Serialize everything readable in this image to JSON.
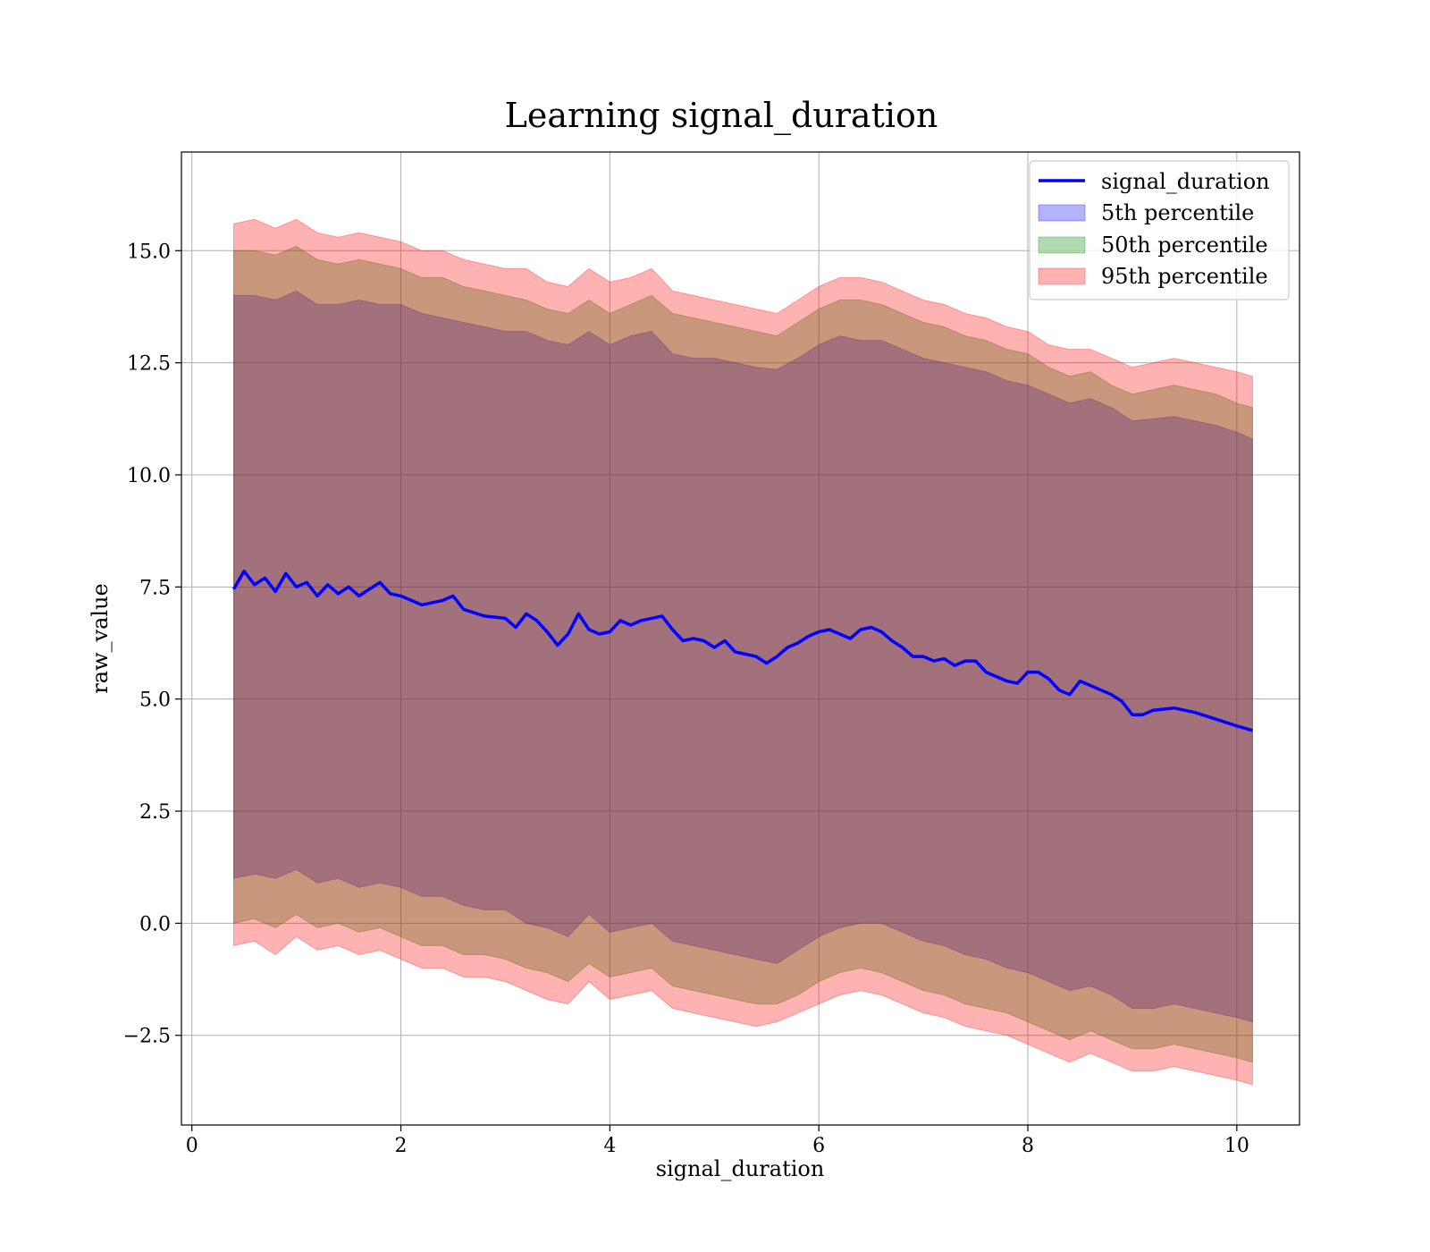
{
  "chart_data": {
    "type": "area",
    "title": "Learning signal_duration",
    "xlabel": "signal_duration",
    "ylabel": "raw_value",
    "xlim": [
      -0.1,
      10.6
    ],
    "ylim": [
      -4.5,
      17.2
    ],
    "xticks": [
      0,
      2,
      4,
      6,
      8,
      10
    ],
    "xtick_labels": [
      "0",
      "2",
      "4",
      "6",
      "8",
      "10"
    ],
    "yticks": [
      -2.5,
      0.0,
      2.5,
      5.0,
      7.5,
      10.0,
      12.5,
      15.0
    ],
    "ytick_labels": [
      "−2.5",
      "0.0",
      "2.5",
      "5.0",
      "7.5",
      "10.0",
      "12.5",
      "15.0"
    ],
    "grid": true,
    "legend_position": "top-right",
    "colors": {
      "line": "#0000ff",
      "p5": "#0000ff",
      "p50": "#008000",
      "p95": "#ff0000"
    },
    "line": {
      "name": "signal_duration",
      "x": [
        0.4,
        0.5,
        0.6,
        0.7,
        0.8,
        0.9,
        1.0,
        1.1,
        1.2,
        1.3,
        1.4,
        1.5,
        1.6,
        1.7,
        1.8,
        1.9,
        2.0,
        2.2,
        2.4,
        2.5,
        2.6,
        2.8,
        3.0,
        3.1,
        3.2,
        3.3,
        3.4,
        3.5,
        3.6,
        3.7,
        3.8,
        3.9,
        4.0,
        4.1,
        4.2,
        4.3,
        4.4,
        4.5,
        4.6,
        4.7,
        4.8,
        4.9,
        5.0,
        5.1,
        5.2,
        5.3,
        5.4,
        5.5,
        5.6,
        5.7,
        5.8,
        5.9,
        6.0,
        6.1,
        6.2,
        6.3,
        6.4,
        6.5,
        6.6,
        6.7,
        6.8,
        6.9,
        7.0,
        7.1,
        7.2,
        7.3,
        7.4,
        7.5,
        7.6,
        7.7,
        7.8,
        7.9,
        8.0,
        8.1,
        8.2,
        8.3,
        8.4,
        8.5,
        8.6,
        8.7,
        8.8,
        8.9,
        9.0,
        9.1,
        9.2,
        9.4,
        9.6,
        9.8,
        10.0,
        10.15
      ],
      "y": [
        7.45,
        7.85,
        7.55,
        7.7,
        7.4,
        7.8,
        7.5,
        7.6,
        7.3,
        7.55,
        7.35,
        7.5,
        7.3,
        7.45,
        7.6,
        7.35,
        7.3,
        7.1,
        7.2,
        7.3,
        7.0,
        6.85,
        6.8,
        6.6,
        6.9,
        6.75,
        6.5,
        6.2,
        6.45,
        6.9,
        6.55,
        6.45,
        6.5,
        6.75,
        6.65,
        6.75,
        6.8,
        6.85,
        6.55,
        6.3,
        6.35,
        6.3,
        6.15,
        6.3,
        6.05,
        6.0,
        5.95,
        5.8,
        5.95,
        6.15,
        6.25,
        6.4,
        6.5,
        6.55,
        6.45,
        6.35,
        6.55,
        6.6,
        6.5,
        6.3,
        6.15,
        5.95,
        5.95,
        5.85,
        5.9,
        5.75,
        5.85,
        5.85,
        5.6,
        5.5,
        5.4,
        5.35,
        5.6,
        5.6,
        5.45,
        5.2,
        5.1,
        5.4,
        5.3,
        5.2,
        5.1,
        4.95,
        4.65,
        4.65,
        4.75,
        4.8,
        4.7,
        4.55,
        4.4,
        4.3
      ]
    },
    "series": [
      {
        "name": "5th percentile",
        "x": [
          0.4,
          0.6,
          0.8,
          1.0,
          1.2,
          1.4,
          1.6,
          1.8,
          2.0,
          2.2,
          2.4,
          2.6,
          2.8,
          3.0,
          3.2,
          3.4,
          3.6,
          3.8,
          4.0,
          4.2,
          4.4,
          4.6,
          4.8,
          5.0,
          5.2,
          5.4,
          5.6,
          5.8,
          6.0,
          6.2,
          6.4,
          6.6,
          6.8,
          7.0,
          7.2,
          7.4,
          7.6,
          7.8,
          8.0,
          8.2,
          8.4,
          8.6,
          8.8,
          9.0,
          9.2,
          9.4,
          9.6,
          9.8,
          10.0,
          10.15
        ],
        "upper": [
          14.0,
          14.0,
          13.9,
          14.1,
          13.8,
          13.8,
          13.9,
          13.8,
          13.8,
          13.6,
          13.5,
          13.4,
          13.3,
          13.2,
          13.2,
          13.0,
          12.9,
          13.2,
          12.9,
          13.1,
          13.2,
          12.7,
          12.6,
          12.6,
          12.5,
          12.4,
          12.35,
          12.6,
          12.9,
          13.1,
          13.0,
          13.0,
          12.8,
          12.6,
          12.5,
          12.4,
          12.3,
          12.1,
          12.0,
          11.8,
          11.6,
          11.7,
          11.5,
          11.2,
          11.25,
          11.3,
          11.2,
          11.1,
          10.95,
          10.8
        ],
        "lower": [
          1.0,
          1.1,
          1.0,
          1.2,
          0.9,
          1.0,
          0.8,
          0.9,
          0.8,
          0.6,
          0.6,
          0.4,
          0.3,
          0.3,
          0.0,
          -0.1,
          -0.3,
          0.2,
          -0.2,
          -0.1,
          0.0,
          -0.4,
          -0.5,
          -0.6,
          -0.7,
          -0.8,
          -0.9,
          -0.6,
          -0.3,
          -0.1,
          0.0,
          0.0,
          -0.2,
          -0.4,
          -0.5,
          -0.7,
          -0.8,
          -1.0,
          -1.1,
          -1.3,
          -1.5,
          -1.4,
          -1.6,
          -1.9,
          -1.9,
          -1.8,
          -1.9,
          -2.0,
          -2.1,
          -2.2
        ]
      },
      {
        "name": "50th percentile",
        "x": [
          0.4,
          0.6,
          0.8,
          1.0,
          1.2,
          1.4,
          1.6,
          1.8,
          2.0,
          2.2,
          2.4,
          2.6,
          2.8,
          3.0,
          3.2,
          3.4,
          3.6,
          3.8,
          4.0,
          4.2,
          4.4,
          4.6,
          4.8,
          5.0,
          5.2,
          5.4,
          5.6,
          5.8,
          6.0,
          6.2,
          6.4,
          6.6,
          6.8,
          7.0,
          7.2,
          7.4,
          7.6,
          7.8,
          8.0,
          8.2,
          8.4,
          8.6,
          8.8,
          9.0,
          9.2,
          9.4,
          9.6,
          9.8,
          10.0,
          10.15
        ],
        "upper": [
          15.0,
          15.0,
          14.9,
          15.1,
          14.8,
          14.7,
          14.8,
          14.7,
          14.6,
          14.4,
          14.4,
          14.2,
          14.1,
          14.0,
          13.9,
          13.7,
          13.6,
          13.9,
          13.6,
          13.8,
          14.0,
          13.6,
          13.5,
          13.4,
          13.3,
          13.2,
          13.1,
          13.4,
          13.7,
          13.9,
          13.9,
          13.8,
          13.6,
          13.4,
          13.3,
          13.1,
          13.0,
          12.8,
          12.7,
          12.4,
          12.2,
          12.3,
          12.0,
          11.8,
          11.9,
          12.0,
          11.9,
          11.8,
          11.6,
          11.5
        ],
        "lower": [
          0.0,
          0.1,
          -0.1,
          0.2,
          -0.1,
          0.0,
          -0.2,
          -0.1,
          -0.3,
          -0.5,
          -0.5,
          -0.7,
          -0.7,
          -0.8,
          -1.0,
          -1.1,
          -1.3,
          -0.9,
          -1.2,
          -1.1,
          -1.0,
          -1.4,
          -1.5,
          -1.6,
          -1.7,
          -1.8,
          -1.8,
          -1.6,
          -1.3,
          -1.1,
          -1.0,
          -1.1,
          -1.3,
          -1.5,
          -1.6,
          -1.8,
          -1.9,
          -2.0,
          -2.2,
          -2.4,
          -2.6,
          -2.4,
          -2.6,
          -2.8,
          -2.8,
          -2.7,
          -2.8,
          -2.9,
          -3.0,
          -3.1
        ]
      },
      {
        "name": "95th percentile",
        "x": [
          0.4,
          0.6,
          0.8,
          1.0,
          1.2,
          1.4,
          1.6,
          1.8,
          2.0,
          2.2,
          2.4,
          2.6,
          2.8,
          3.0,
          3.2,
          3.4,
          3.6,
          3.8,
          4.0,
          4.2,
          4.4,
          4.6,
          4.8,
          5.0,
          5.2,
          5.4,
          5.6,
          5.8,
          6.0,
          6.2,
          6.4,
          6.6,
          6.8,
          7.0,
          7.2,
          7.4,
          7.6,
          7.8,
          8.0,
          8.2,
          8.4,
          8.6,
          8.8,
          9.0,
          9.2,
          9.4,
          9.6,
          9.8,
          10.0,
          10.15
        ],
        "upper": [
          15.6,
          15.7,
          15.5,
          15.7,
          15.4,
          15.3,
          15.4,
          15.3,
          15.2,
          15.0,
          15.0,
          14.8,
          14.7,
          14.6,
          14.6,
          14.3,
          14.2,
          14.6,
          14.3,
          14.4,
          14.6,
          14.1,
          14.0,
          13.9,
          13.8,
          13.7,
          13.6,
          13.9,
          14.2,
          14.4,
          14.4,
          14.3,
          14.1,
          13.9,
          13.8,
          13.6,
          13.5,
          13.3,
          13.2,
          12.9,
          12.8,
          12.8,
          12.6,
          12.4,
          12.5,
          12.6,
          12.5,
          12.4,
          12.3,
          12.2
        ],
        "lower": [
          -0.5,
          -0.4,
          -0.7,
          -0.3,
          -0.6,
          -0.5,
          -0.7,
          -0.6,
          -0.8,
          -1.0,
          -1.0,
          -1.2,
          -1.2,
          -1.3,
          -1.5,
          -1.7,
          -1.8,
          -1.3,
          -1.7,
          -1.6,
          -1.5,
          -1.9,
          -2.0,
          -2.1,
          -2.2,
          -2.3,
          -2.2,
          -2.0,
          -1.8,
          -1.6,
          -1.5,
          -1.6,
          -1.8,
          -2.0,
          -2.1,
          -2.3,
          -2.4,
          -2.5,
          -2.7,
          -2.9,
          -3.1,
          -2.9,
          -3.1,
          -3.3,
          -3.3,
          -3.2,
          -3.3,
          -3.4,
          -3.5,
          -3.6
        ]
      }
    ]
  }
}
